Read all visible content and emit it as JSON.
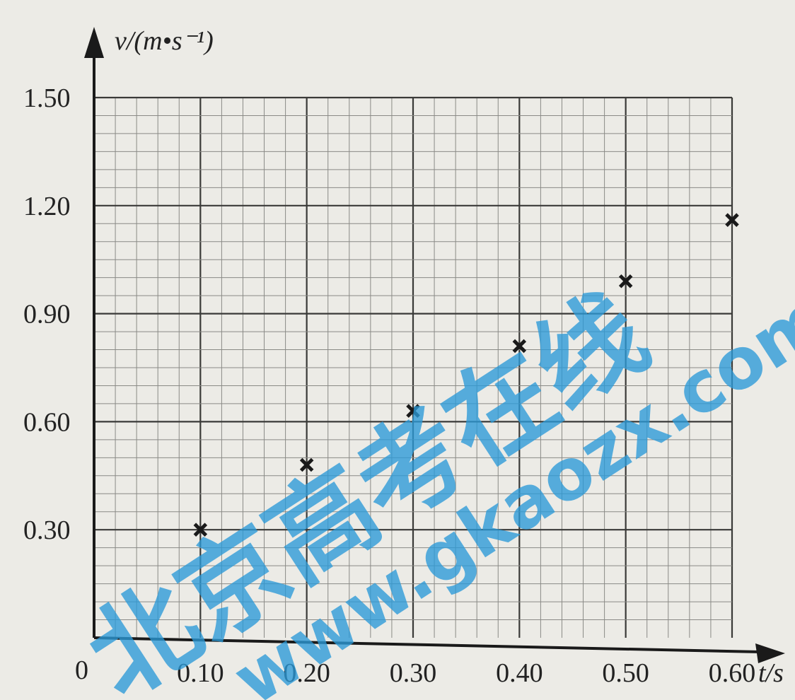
{
  "chart_data": {
    "type": "scatter",
    "title": "",
    "xlabel": "t/s",
    "ylabel": "v/(m•s⁻¹)",
    "xlim": [
      0,
      0.6
    ],
    "ylim": [
      0,
      1.5
    ],
    "grid": true,
    "origin_label": "0",
    "x_ticks": [
      "0.10",
      "0.20",
      "0.30",
      "0.40",
      "0.50",
      "0.60"
    ],
    "y_ticks": [
      "0.30",
      "0.60",
      "0.90",
      "1.20",
      "1.50"
    ],
    "marker": "x",
    "points": [
      {
        "x": 0.1,
        "y": 0.3
      },
      {
        "x": 0.2,
        "y": 0.48
      },
      {
        "x": 0.3,
        "y": 0.63
      },
      {
        "x": 0.4,
        "y": 0.81
      },
      {
        "x": 0.5,
        "y": 0.99
      },
      {
        "x": 0.6,
        "y": 1.16
      }
    ]
  },
  "watermark": {
    "chinese": "北京高考在线",
    "url": "www.gkaozx.com",
    "color": "#2b9ad8"
  },
  "colors": {
    "ink": "#1a1a1a",
    "grid_minor": "#8a8a86",
    "grid_major": "#3a3a38",
    "paper": "#ecebe6"
  }
}
